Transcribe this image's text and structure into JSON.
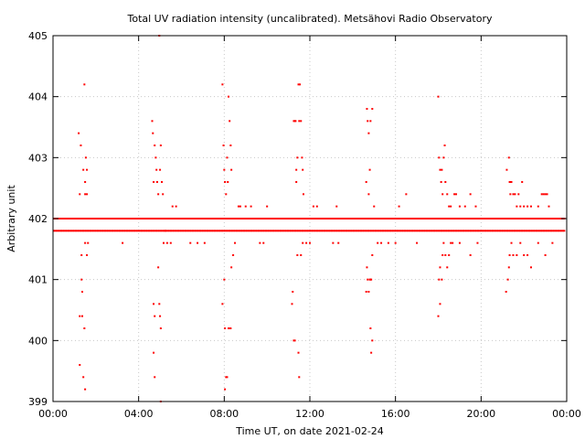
{
  "chart_data": {
    "type": "scatter",
    "title": "Total UV radiation intensity (uncalibrated). Metsähovi Radio Observatory",
    "xlabel": "Time UT, on date 2021-02-24",
    "ylabel": "Arbitrary unit",
    "xlim": [
      "00:00",
      "24:00"
    ],
    "ylim": [
      399,
      405
    ],
    "x_ticks": [
      "00:00",
      "04:00",
      "08:00",
      "12:00",
      "16:00",
      "20:00",
      "00:00"
    ],
    "y_ticks": [
      "399",
      "400",
      "401",
      "402",
      "403",
      "404",
      "405"
    ],
    "grid": true,
    "marker_color": "#ff0000",
    "baseline_levels": [
      401.8,
      402.0
    ],
    "series": [
      {
        "name": "",
        "points": [
          [
            "01:12",
            403.4
          ],
          [
            "01:15",
            402.4
          ],
          [
            "01:18",
            403.2
          ],
          [
            "01:20",
            401.4
          ],
          [
            "01:20",
            401.0
          ],
          [
            "01:22",
            400.8
          ],
          [
            "01:15",
            400.4
          ],
          [
            "01:22",
            400.4
          ],
          [
            "01:15",
            399.6
          ],
          [
            "01:25",
            399.4
          ],
          [
            "01:30",
            399.2
          ],
          [
            "01:28",
            404.2
          ],
          [
            "01:25",
            402.8
          ],
          [
            "01:30",
            402.6
          ],
          [
            "01:32",
            403.0
          ],
          [
            "01:35",
            402.8
          ],
          [
            "01:30",
            402.4
          ],
          [
            "01:35",
            402.4
          ],
          [
            "01:28",
            400.2
          ],
          [
            "01:30",
            401.6
          ],
          [
            "01:35",
            401.4
          ],
          [
            "01:38",
            401.6
          ],
          [
            "03:15",
            401.6
          ],
          [
            "04:38",
            403.6
          ],
          [
            "04:40",
            403.4
          ],
          [
            "04:42",
            402.6
          ],
          [
            "04:45",
            403.2
          ],
          [
            "04:48",
            403.0
          ],
          [
            "04:50",
            402.8
          ],
          [
            "04:52",
            402.6
          ],
          [
            "04:55",
            402.4
          ],
          [
            "05:00",
            402.8
          ],
          [
            "05:02",
            403.2
          ],
          [
            "05:05",
            402.6
          ],
          [
            "05:08",
            402.4
          ],
          [
            "04:42",
            400.6
          ],
          [
            "04:45",
            400.4
          ],
          [
            "04:42",
            399.8
          ],
          [
            "04:45",
            399.4
          ],
          [
            "04:55",
            401.2
          ],
          [
            "04:58",
            400.6
          ],
          [
            "05:00",
            400.4
          ],
          [
            "05:02",
            400.2
          ],
          [
            "04:58",
            405.0
          ],
          [
            "05:02",
            399.0
          ],
          [
            "05:10",
            401.6
          ],
          [
            "05:15",
            401.8
          ],
          [
            "05:20",
            401.6
          ],
          [
            "05:30",
            401.6
          ],
          [
            "05:35",
            402.2
          ],
          [
            "05:45",
            402.2
          ],
          [
            "06:25",
            401.6
          ],
          [
            "06:45",
            401.6
          ],
          [
            "07:05",
            401.6
          ],
          [
            "07:55",
            404.2
          ],
          [
            "07:58",
            403.2
          ],
          [
            "08:00",
            402.8
          ],
          [
            "08:02",
            402.6
          ],
          [
            "08:05",
            402.4
          ],
          [
            "08:08",
            403.0
          ],
          [
            "08:10",
            402.6
          ],
          [
            "08:12",
            404.0
          ],
          [
            "08:15",
            403.6
          ],
          [
            "08:18",
            403.2
          ],
          [
            "08:20",
            402.8
          ],
          [
            "07:55",
            400.6
          ],
          [
            "08:00",
            401.0
          ],
          [
            "08:02",
            400.2
          ],
          [
            "08:05",
            399.4
          ],
          [
            "08:08",
            399.4
          ],
          [
            "08:02",
            399.2
          ],
          [
            "08:12",
            400.2
          ],
          [
            "08:15",
            400.2
          ],
          [
            "08:18",
            400.2
          ],
          [
            "08:20",
            401.2
          ],
          [
            "08:25",
            401.4
          ],
          [
            "08:30",
            401.6
          ],
          [
            "08:40",
            402.2
          ],
          [
            "08:45",
            402.2
          ],
          [
            "09:00",
            402.2
          ],
          [
            "09:15",
            402.2
          ],
          [
            "09:40",
            401.6
          ],
          [
            "09:50",
            401.6
          ],
          [
            "10:00",
            402.2
          ],
          [
            "11:10",
            400.6
          ],
          [
            "11:12",
            400.8
          ],
          [
            "11:15",
            403.6
          ],
          [
            "11:18",
            403.6
          ],
          [
            "11:20",
            403.6
          ],
          [
            "11:22",
            402.8
          ],
          [
            "11:22",
            402.6
          ],
          [
            "11:25",
            403.0
          ],
          [
            "11:28",
            404.2
          ],
          [
            "11:30",
            403.6
          ],
          [
            "11:32",
            404.2
          ],
          [
            "11:35",
            403.6
          ],
          [
            "11:38",
            403.0
          ],
          [
            "11:40",
            402.8
          ],
          [
            "11:42",
            402.4
          ],
          [
            "11:15",
            400.0
          ],
          [
            "11:18",
            400.0
          ],
          [
            "11:25",
            401.4
          ],
          [
            "11:28",
            399.8
          ],
          [
            "11:30",
            399.4
          ],
          [
            "11:35",
            401.4
          ],
          [
            "11:40",
            401.6
          ],
          [
            "11:50",
            401.6
          ],
          [
            "12:00",
            401.6
          ],
          [
            "12:10",
            402.2
          ],
          [
            "12:20",
            402.2
          ],
          [
            "13:15",
            402.2
          ],
          [
            "13:05",
            401.6
          ],
          [
            "13:20",
            401.6
          ],
          [
            "14:40",
            403.8
          ],
          [
            "14:42",
            403.6
          ],
          [
            "14:45",
            403.4
          ],
          [
            "14:48",
            402.8
          ],
          [
            "14:50",
            403.6
          ],
          [
            "14:55",
            403.8
          ],
          [
            "14:38",
            402.6
          ],
          [
            "14:45",
            402.4
          ],
          [
            "14:40",
            401.2
          ],
          [
            "14:42",
            401.0
          ],
          [
            "14:45",
            400.8
          ],
          [
            "14:48",
            401.0
          ],
          [
            "14:50",
            401.0
          ],
          [
            "14:52",
            401.0
          ],
          [
            "14:55",
            401.4
          ],
          [
            "14:38",
            400.8
          ],
          [
            "14:50",
            400.2
          ],
          [
            "14:52",
            399.8
          ],
          [
            "14:55",
            400.0
          ],
          [
            "15:00",
            402.2
          ],
          [
            "15:10",
            401.6
          ],
          [
            "15:20",
            401.6
          ],
          [
            "15:40",
            401.6
          ],
          [
            "16:00",
            401.6
          ],
          [
            "16:10",
            402.2
          ],
          [
            "16:30",
            402.4
          ],
          [
            "17:00",
            401.6
          ],
          [
            "18:00",
            404.0
          ],
          [
            "18:02",
            403.0
          ],
          [
            "18:05",
            402.8
          ],
          [
            "18:08",
            402.6
          ],
          [
            "18:10",
            402.8
          ],
          [
            "18:12",
            402.4
          ],
          [
            "18:15",
            403.0
          ],
          [
            "18:18",
            403.2
          ],
          [
            "18:20",
            402.6
          ],
          [
            "18:25",
            402.4
          ],
          [
            "18:30",
            402.2
          ],
          [
            "18:35",
            402.2
          ],
          [
            "18:45",
            402.4
          ],
          [
            "18:50",
            402.4
          ],
          [
            "19:00",
            402.2
          ],
          [
            "19:15",
            402.2
          ],
          [
            "19:30",
            402.4
          ],
          [
            "19:45",
            402.2
          ],
          [
            "18:00",
            400.4
          ],
          [
            "18:05",
            400.6
          ],
          [
            "18:02",
            401.0
          ],
          [
            "18:05",
            401.2
          ],
          [
            "18:10",
            401.0
          ],
          [
            "18:12",
            401.4
          ],
          [
            "18:15",
            401.6
          ],
          [
            "18:20",
            401.4
          ],
          [
            "18:25",
            401.2
          ],
          [
            "18:30",
            401.4
          ],
          [
            "18:35",
            401.6
          ],
          [
            "18:40",
            401.6
          ],
          [
            "19:00",
            401.6
          ],
          [
            "19:30",
            401.4
          ],
          [
            "19:50",
            401.6
          ],
          [
            "21:12",
            402.8
          ],
          [
            "21:18",
            403.0
          ],
          [
            "21:20",
            402.6
          ],
          [
            "21:22",
            402.4
          ],
          [
            "21:25",
            402.6
          ],
          [
            "21:30",
            402.4
          ],
          [
            "21:35",
            402.4
          ],
          [
            "21:40",
            402.2
          ],
          [
            "21:45",
            402.4
          ],
          [
            "21:50",
            402.2
          ],
          [
            "21:55",
            402.6
          ],
          [
            "22:00",
            402.2
          ],
          [
            "22:10",
            402.2
          ],
          [
            "22:20",
            402.2
          ],
          [
            "22:40",
            402.2
          ],
          [
            "22:50",
            402.4
          ],
          [
            "22:55",
            402.4
          ],
          [
            "23:00",
            402.4
          ],
          [
            "23:05",
            402.4
          ],
          [
            "23:10",
            402.2
          ],
          [
            "21:10",
            400.8
          ],
          [
            "21:15",
            401.0
          ],
          [
            "21:18",
            401.2
          ],
          [
            "21:20",
            401.4
          ],
          [
            "21:25",
            401.6
          ],
          [
            "21:30",
            401.4
          ],
          [
            "21:40",
            401.4
          ],
          [
            "21:50",
            401.6
          ],
          [
            "22:00",
            401.4
          ],
          [
            "22:10",
            401.4
          ],
          [
            "22:20",
            401.2
          ],
          [
            "22:40",
            401.6
          ],
          [
            "23:00",
            401.4
          ],
          [
            "23:20",
            401.6
          ]
        ]
      }
    ]
  }
}
